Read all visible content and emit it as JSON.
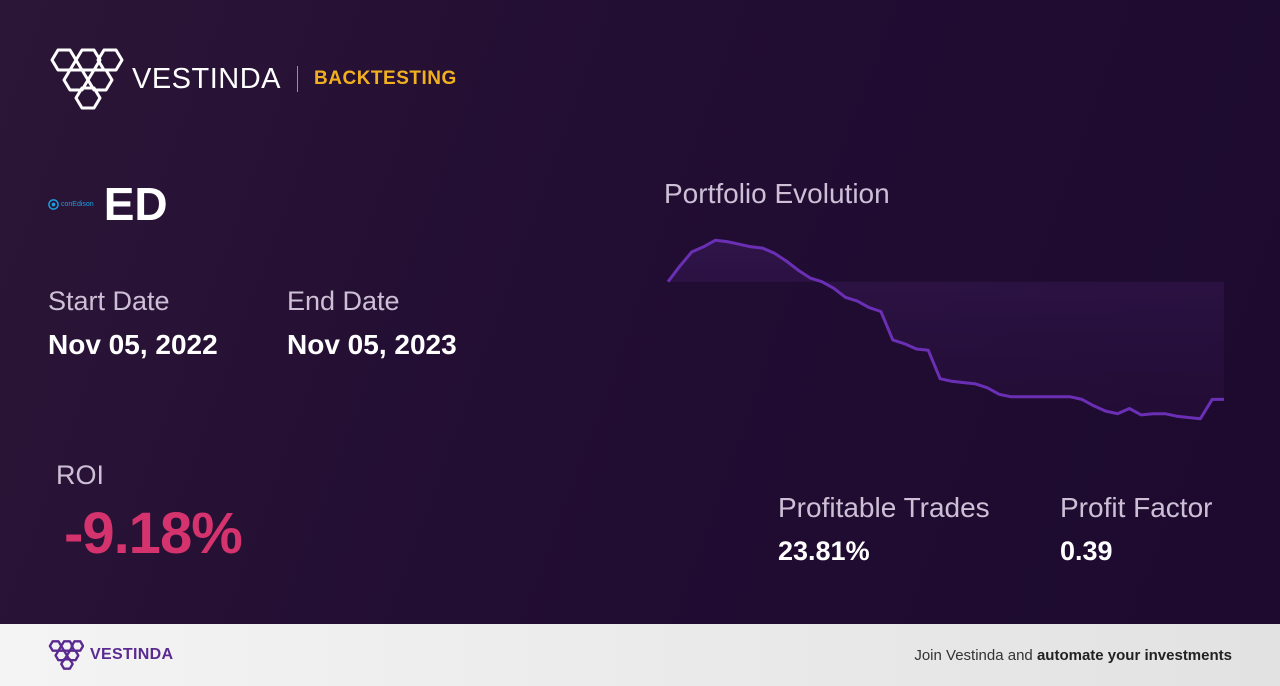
{
  "header": {
    "brand_name": "VESTINDA",
    "section": "BACKTESTING"
  },
  "ticker": {
    "company_logo_text": "conEdison",
    "symbol": "ED"
  },
  "dates": {
    "start_label": "Start Date",
    "start_value": "Nov 05, 2022",
    "end_label": "End Date",
    "end_value": "Nov 05, 2023"
  },
  "roi": {
    "label": "ROI",
    "value": "-9.18%"
  },
  "stats": {
    "profitable_trades_label": "Profitable Trades",
    "profitable_trades_value": "23.81%",
    "profit_factor_label": "Profit Factor",
    "profit_factor_value": "0.39"
  },
  "footer": {
    "brand_name": "VESTINDA",
    "cta_prefix": "Join Vestinda and ",
    "cta_bold": "automate your investments"
  },
  "colors": {
    "accent_gold": "#f2b01e",
    "roi_negative": "#d4336e",
    "chart_line": "#6a2fb4",
    "brand_purple": "#5b2a91"
  },
  "chart_data": {
    "type": "area",
    "title": "Portfolio Evolution",
    "baseline": 0,
    "values": [
      0,
      1.2,
      2.3,
      2.7,
      3.2,
      3.1,
      2.9,
      2.7,
      2.6,
      2.2,
      1.6,
      0.9,
      0.3,
      0,
      -0.5,
      -1.2,
      -1.5,
      -2.0,
      -2.3,
      -4.5,
      -4.8,
      -5.2,
      -5.3,
      -7.5,
      -7.7,
      -7.8,
      -7.9,
      -8.2,
      -8.7,
      -8.9,
      -8.9,
      -8.9,
      -8.9,
      -8.9,
      -8.9,
      -9.1,
      -9.6,
      -10.0,
      -10.2,
      -9.8,
      -10.3,
      -10.2,
      -10.2,
      -10.4,
      -10.5,
      -10.6,
      -9.1,
      -9.1
    ],
    "ylim": [
      -11,
      4
    ]
  }
}
